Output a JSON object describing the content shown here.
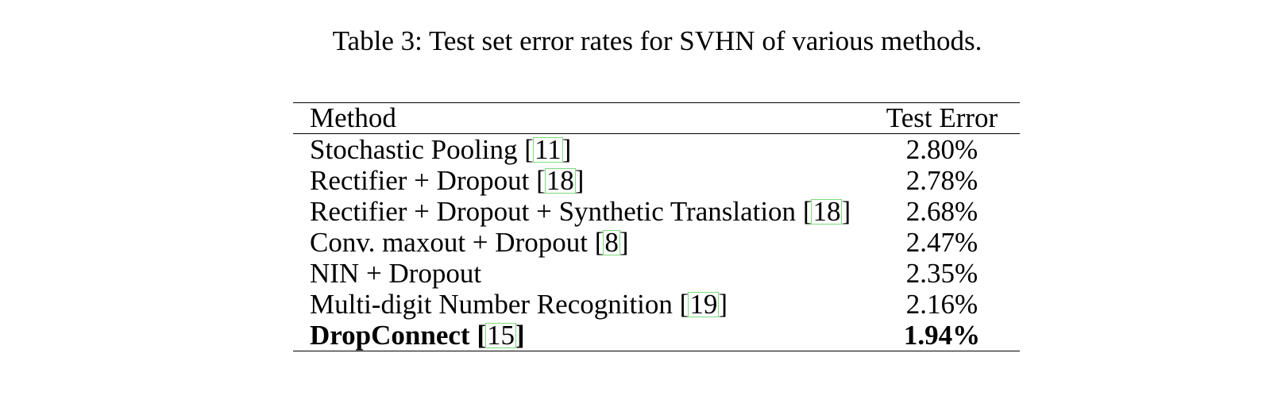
{
  "caption": "Table 3: Test set error rates for SVHN of various methods.",
  "table": {
    "headers": {
      "method": "Method",
      "error": "Test Error"
    },
    "rows": [
      {
        "method": "Stochastic Pooling ",
        "cite": "11",
        "error": "2.80%",
        "bold": false
      },
      {
        "method": "Rectifier + Dropout ",
        "cite": "18",
        "error": "2.78%",
        "bold": false
      },
      {
        "method": "Rectifier + Dropout + Synthetic Translation ",
        "cite": "18",
        "error": "2.68%",
        "bold": false
      },
      {
        "method": "Conv. maxout + Dropout ",
        "cite": "8",
        "error": "2.47%",
        "bold": false
      },
      {
        "method": "NIN + Dropout",
        "cite": "",
        "error": "2.35%",
        "bold": false
      },
      {
        "method": "Multi-digit Number Recognition ",
        "cite": "19",
        "error": "2.16%",
        "bold": false
      },
      {
        "method": "DropConnect ",
        "cite": "15",
        "error": "1.94%",
        "bold": true
      }
    ]
  }
}
